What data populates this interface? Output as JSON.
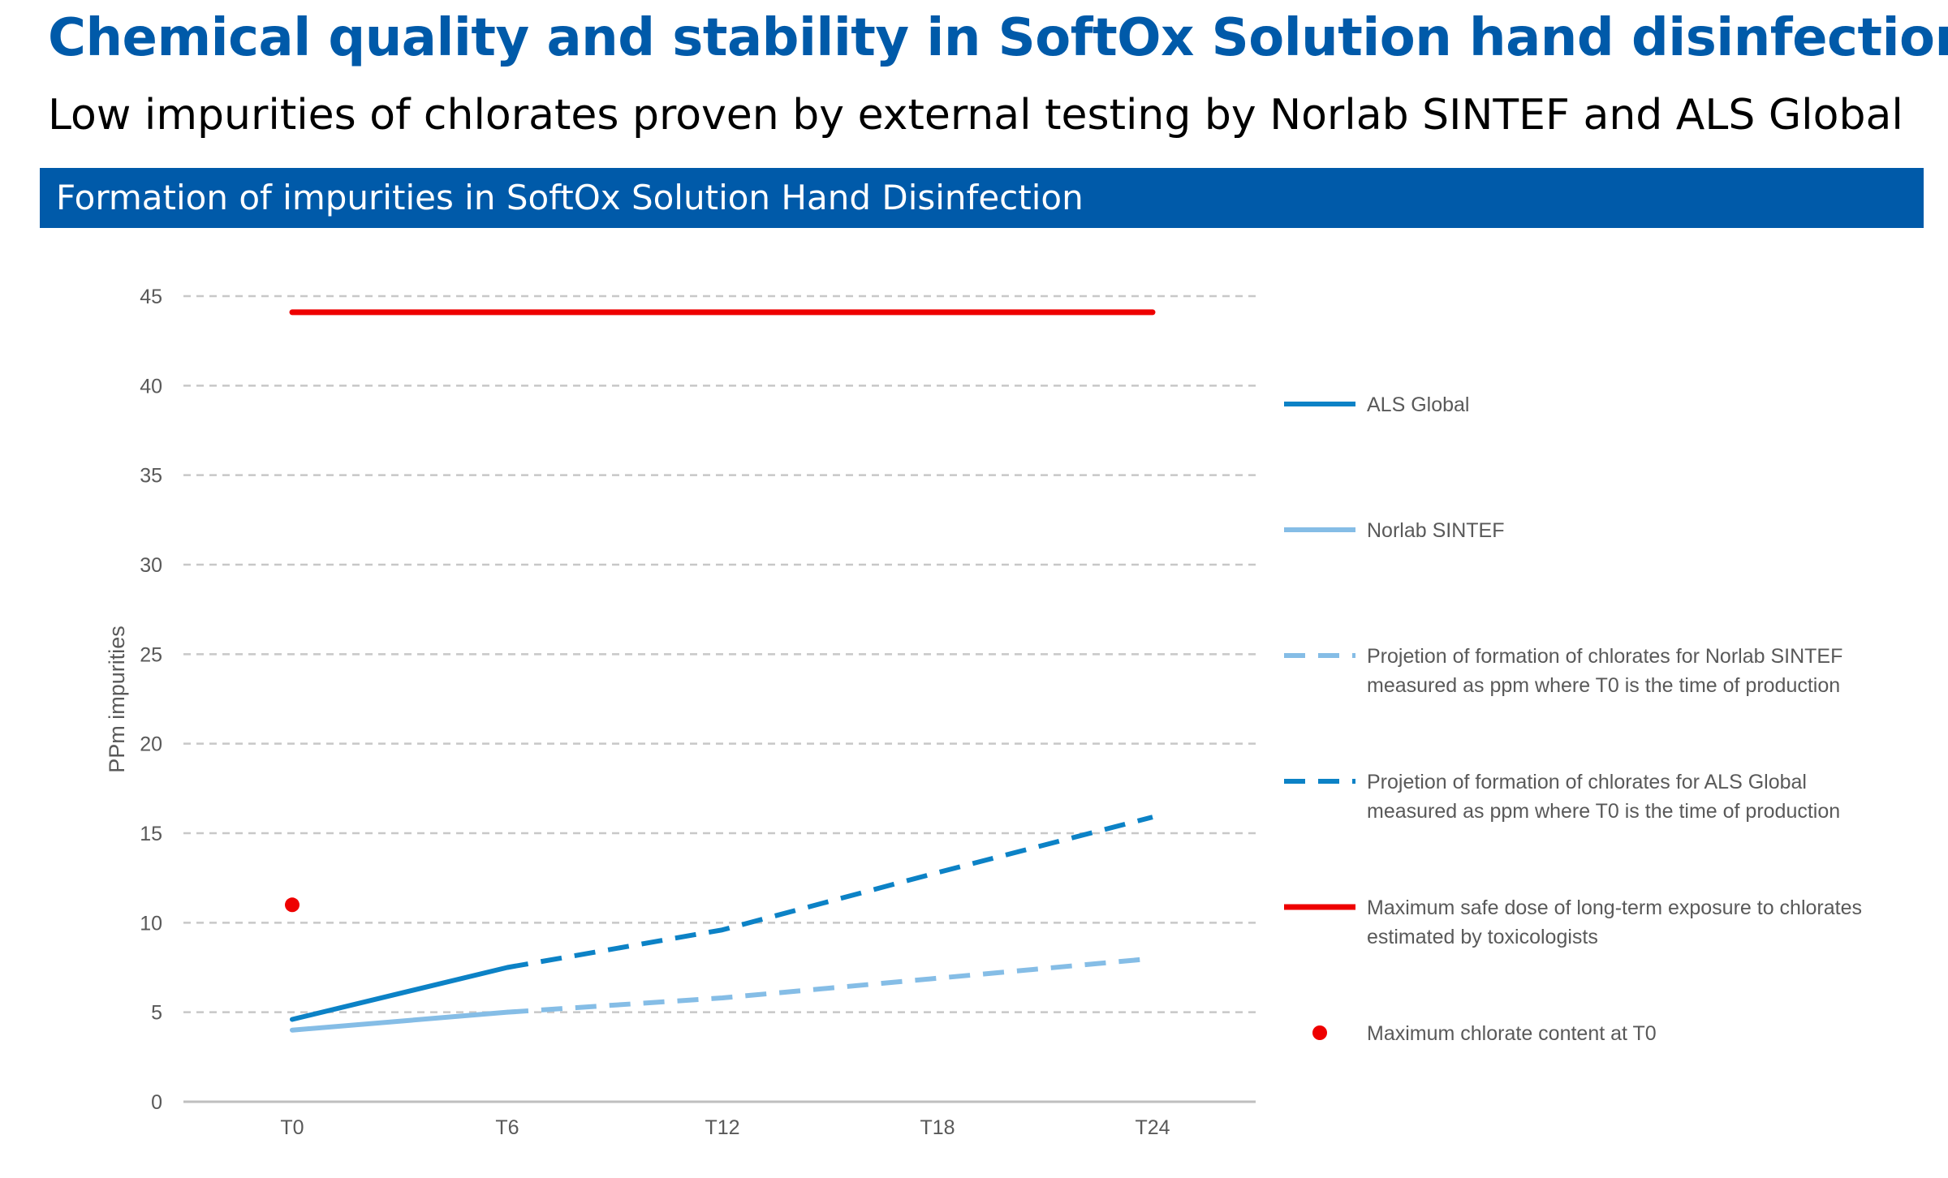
{
  "title": "Chemical quality and stability in SoftOx Solution hand disinfection",
  "subtitle": "Low impurities of chlorates proven by external testing by Norlab SINTEF and ALS Global",
  "band_title": "Formation of impurities in SoftOx Solution Hand Disinfection",
  "colors": {
    "brand": "#005AA9",
    "als": "#0C82C6",
    "norlab": "#85BDE6",
    "limit": "#EE0000",
    "grid": "#C8C8C8",
    "axis_text": "#595959"
  },
  "chart_data": {
    "type": "line",
    "ylabel": "PPm impurities",
    "xlabel": "",
    "categories": [
      "T0",
      "T6",
      "T12",
      "T18",
      "T24"
    ],
    "ylim": [
      0,
      45
    ],
    "yticks": [
      0,
      5,
      10,
      15,
      20,
      25,
      30,
      35,
      40,
      45
    ],
    "grid": true,
    "legend_position": "right",
    "series": [
      {
        "key": "als",
        "name": "ALS Global",
        "style": "solid",
        "color": "#0C82C6",
        "points": [
          [
            "T0",
            4.6
          ],
          [
            "T6",
            7.5
          ]
        ]
      },
      {
        "key": "norlab",
        "name": "Norlab SINTEF",
        "style": "solid",
        "color": "#85BDE6",
        "points": [
          [
            "T0",
            4.0
          ],
          [
            "T6",
            5.0
          ]
        ]
      },
      {
        "key": "norlab_proj",
        "name": "Projetion of formation of chlorates for Norlab SINTEF measured as ppm where T0 is the time of production",
        "legend_lines": [
          "Projetion of formation of chlorates for Norlab SINTEF",
          "measured as ppm where T0 is the time of production"
        ],
        "style": "dashed",
        "color": "#85BDE6",
        "points": [
          [
            "T6",
            5.0
          ],
          [
            "T12",
            5.8
          ],
          [
            "T18",
            6.9
          ],
          [
            "T24",
            8.0
          ]
        ]
      },
      {
        "key": "als_proj",
        "name": "Projetion of formation of chlorates for ALS Global measured as ppm where T0 is the time of production",
        "legend_lines": [
          "Projetion of formation of chlorates for ALS Global",
          "measured as ppm where T0 is the time of production"
        ],
        "style": "dashed",
        "color": "#0C82C6",
        "points": [
          [
            "T6",
            7.5
          ],
          [
            "T12",
            9.6
          ],
          [
            "T18",
            12.8
          ],
          [
            "T24",
            15.9
          ]
        ]
      },
      {
        "key": "limit",
        "name": "Maximum safe dose of long-term exposure to chlorates estimated by toxicologists",
        "legend_lines": [
          "Maximum safe dose of long-term exposure to chlorates",
          "estimated by toxicologists"
        ],
        "style": "solid",
        "color": "#EE0000",
        "points": [
          [
            "T0",
            44.1
          ],
          [
            "T24",
            44.1
          ]
        ]
      },
      {
        "key": "t0max",
        "name": "Maximum chlorate content at T0",
        "style": "marker",
        "color": "#EE0000",
        "points": [
          [
            "T0",
            11.0
          ]
        ]
      }
    ]
  }
}
